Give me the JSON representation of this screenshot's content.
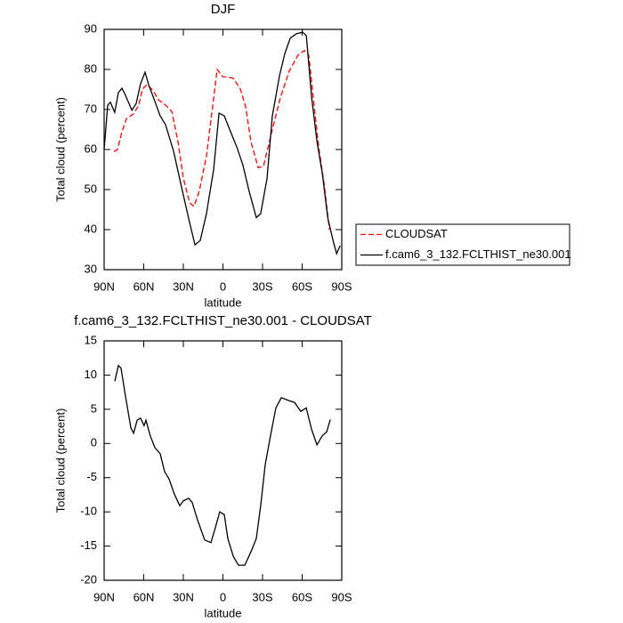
{
  "chart_data": [
    {
      "type": "line",
      "title": "DJF",
      "xlabel": "latitude",
      "ylabel": "Total cloud (percent)",
      "xlim": [
        90,
        -90
      ],
      "ylim": [
        30,
        90
      ],
      "xticks": [
        {
          "value": 90,
          "label": "90N"
        },
        {
          "value": 60,
          "label": "60N"
        },
        {
          "value": 30,
          "label": "30N"
        },
        0,
        {
          "value": -30,
          "label": "30S"
        },
        {
          "value": -60,
          "label": "60S"
        },
        {
          "value": -90,
          "label": "90S"
        }
      ],
      "yticks": [
        30,
        40,
        50,
        60,
        70,
        80,
        90
      ],
      "legend": "right",
      "series": [
        {
          "name": "CLOUDSAT",
          "color": "#ff0000",
          "dashed": true,
          "x": [
            82.6,
            79.9,
            76.5,
            73.1,
            67.7,
            63.7,
            61,
            57.6,
            52.9,
            48.8,
            43.5,
            38.7,
            34,
            30,
            25.3,
            21.9,
            17.9,
            12.5,
            7.8,
            4.4,
            0.3,
            -4.4,
            -7.8,
            -13.2,
            -17.2,
            -21.3,
            -26.7,
            -30.7,
            -36.7,
            -43.5,
            -50.2,
            -57,
            -61.7,
            -65,
            -68.4,
            -72.5,
            -76.5,
            -80.6
          ],
          "values": [
            59.5,
            60,
            64.4,
            67.7,
            68.9,
            71.1,
            75.1,
            76.2,
            74.7,
            72.4,
            71.1,
            69.5,
            61.8,
            52.9,
            46.7,
            45.8,
            49.6,
            58.4,
            70.7,
            80,
            78.2,
            78,
            77.8,
            75.1,
            70.7,
            61.8,
            55.5,
            55.8,
            64,
            72.9,
            79.6,
            83.6,
            84.7,
            83.6,
            72.9,
            60.7,
            51.8,
            40
          ]
        },
        {
          "name": "f.cam6_3_132.FCLTHIST_ne30.001",
          "color": "#000000",
          "dashed": false,
          "x": [
            90,
            87.3,
            85.3,
            82,
            79.2,
            76.5,
            74.5,
            69,
            65.7,
            62.4,
            59,
            56.3,
            53,
            47.5,
            43.5,
            37.4,
            30.7,
            25.3,
            21.2,
            17.2,
            12.5,
            7,
            3,
            -1,
            -5,
            -10.5,
            -15,
            -19.8,
            -25.3,
            -28.6,
            -33.4,
            -37.4,
            -42.8,
            -46.9,
            -51,
            -55.7,
            -60.5,
            -63.2,
            -67.2,
            -71.3,
            -75.3,
            -79.4,
            -83.4,
            -86.1,
            -88.8
          ],
          "values": [
            60,
            71.1,
            71.8,
            69.3,
            74.2,
            75.3,
            74,
            69.8,
            71.5,
            76.4,
            79.3,
            76.2,
            73.3,
            68.4,
            66.2,
            59.6,
            49.6,
            41.8,
            36.2,
            37.3,
            44,
            55.1,
            69.1,
            68.4,
            65.1,
            60.6,
            56.2,
            49.6,
            43,
            44,
            52.7,
            68.4,
            78.4,
            84,
            87.8,
            88.9,
            89.3,
            88.4,
            72.9,
            61.8,
            54,
            42.9,
            37.3,
            34,
            36
          ]
        }
      ]
    },
    {
      "type": "line",
      "title": "f.cam6_3_132.FCLTHIST_ne30.001 - CLOUDSAT",
      "xlabel": "latitude",
      "ylabel": "Total cloud (percent)",
      "xlim": [
        90,
        -90
      ],
      "ylim": [
        -20,
        15
      ],
      "xticks": [
        {
          "value": 90,
          "label": "90N"
        },
        {
          "value": 60,
          "label": "60N"
        },
        {
          "value": 30,
          "label": "30N"
        },
        0,
        {
          "value": -30,
          "label": "30S"
        },
        {
          "value": -60,
          "label": "60S"
        },
        {
          "value": -90,
          "label": "90S"
        }
      ],
      "yticks": [
        -20,
        -15,
        -10,
        -5,
        0,
        5,
        10,
        15
      ],
      "series": [
        {
          "color": "#000000",
          "dashed": false,
          "x": [
            81.9,
            79.2,
            77.2,
            73.8,
            69.8,
            67.7,
            65,
            62.4,
            59.7,
            58.3,
            55,
            51.6,
            47.5,
            44.2,
            40.8,
            36.8,
            32.7,
            30,
            26,
            23.3,
            19.2,
            13.8,
            9.1,
            5.7,
            2.4,
            -1,
            -3.7,
            -7.8,
            -11.8,
            -16.5,
            -21.3,
            -25.3,
            -28.6,
            -32,
            -36,
            -40.1,
            -44.2,
            -49.5,
            -54.3,
            -59,
            -63.1,
            -67.1,
            -71.2,
            -75.2,
            -78.6,
            -81.3
          ],
          "values": [
            9.1,
            11.4,
            11,
            6.9,
            2.3,
            1.5,
            3.4,
            3.7,
            2.6,
            3.4,
            1.1,
            -0.6,
            -1.5,
            -4.1,
            -5.2,
            -7.4,
            -9.1,
            -8.4,
            -8,
            -8.6,
            -11.2,
            -14.1,
            -14.5,
            -12.3,
            -10,
            -10.4,
            -13.9,
            -16.5,
            -17.8,
            -17.8,
            -15.8,
            -13.9,
            -9.1,
            -3.1,
            1.1,
            5.2,
            6.7,
            6.3,
            6,
            4.7,
            5.2,
            2.1,
            -0.2,
            1.1,
            1.7,
            3.5
          ]
        }
      ]
    }
  ]
}
